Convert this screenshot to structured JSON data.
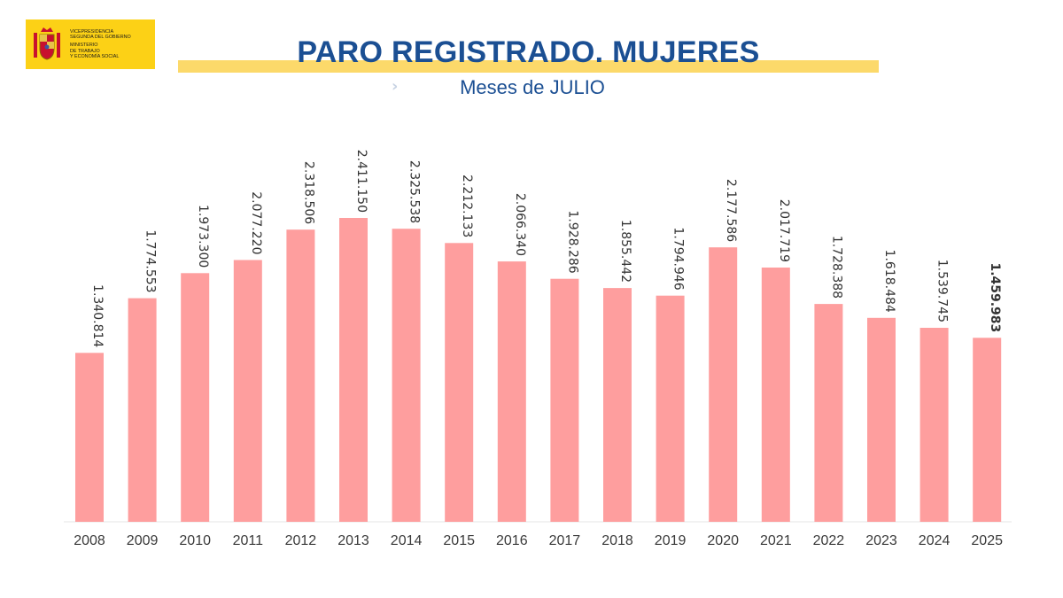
{
  "logo": {
    "line1": "VICEPRESIDENCIA",
    "line2": "SEGUNDA DEL GOBIERNO",
    "line3": "MINISTERIO",
    "line4": "DE TRABAJO",
    "line5": "Y ECONOMÍA SOCIAL"
  },
  "header": {
    "title": "PARO REGISTRADO. MUJERES",
    "subtitle": "Meses de JULIO"
  },
  "colors": {
    "bar": "#fe9e9e",
    "title": "#1b4f93",
    "accent_bar": "#fcd96a",
    "logo_bg": "#fcd116"
  },
  "chart_data": {
    "type": "bar",
    "categories": [
      "2008",
      "2009",
      "2010",
      "2011",
      "2012",
      "2013",
      "2014",
      "2015",
      "2016",
      "2017",
      "2018",
      "2019",
      "2020",
      "2021",
      "2022",
      "2023",
      "2024",
      "2025"
    ],
    "values": [
      1340814,
      1774553,
      1973300,
      2077220,
      2318506,
      2411150,
      2325538,
      2212133,
      2066340,
      1928286,
      1855442,
      1794946,
      2177586,
      2017719,
      1728388,
      1618484,
      1539745,
      1459983
    ],
    "labels": [
      "1.340.814",
      "1.774.553",
      "1.973.300",
      "2.077.220",
      "2.318.506",
      "2.411.150",
      "2.325.538",
      "2.212.133",
      "2.066.340",
      "1.928.286",
      "1.855.442",
      "1.794.946",
      "2.177.586",
      "2.017.719",
      "1.728.388",
      "1.618.484",
      "1.539.745",
      "1.459.983"
    ],
    "highlight_last_label": true,
    "title": "PARO REGISTRADO. MUJERES",
    "subtitle": "Meses de JULIO",
    "xlabel": "",
    "ylabel": "",
    "ylim": [
      0,
      2411150
    ],
    "grid": false,
    "legend": "none"
  }
}
